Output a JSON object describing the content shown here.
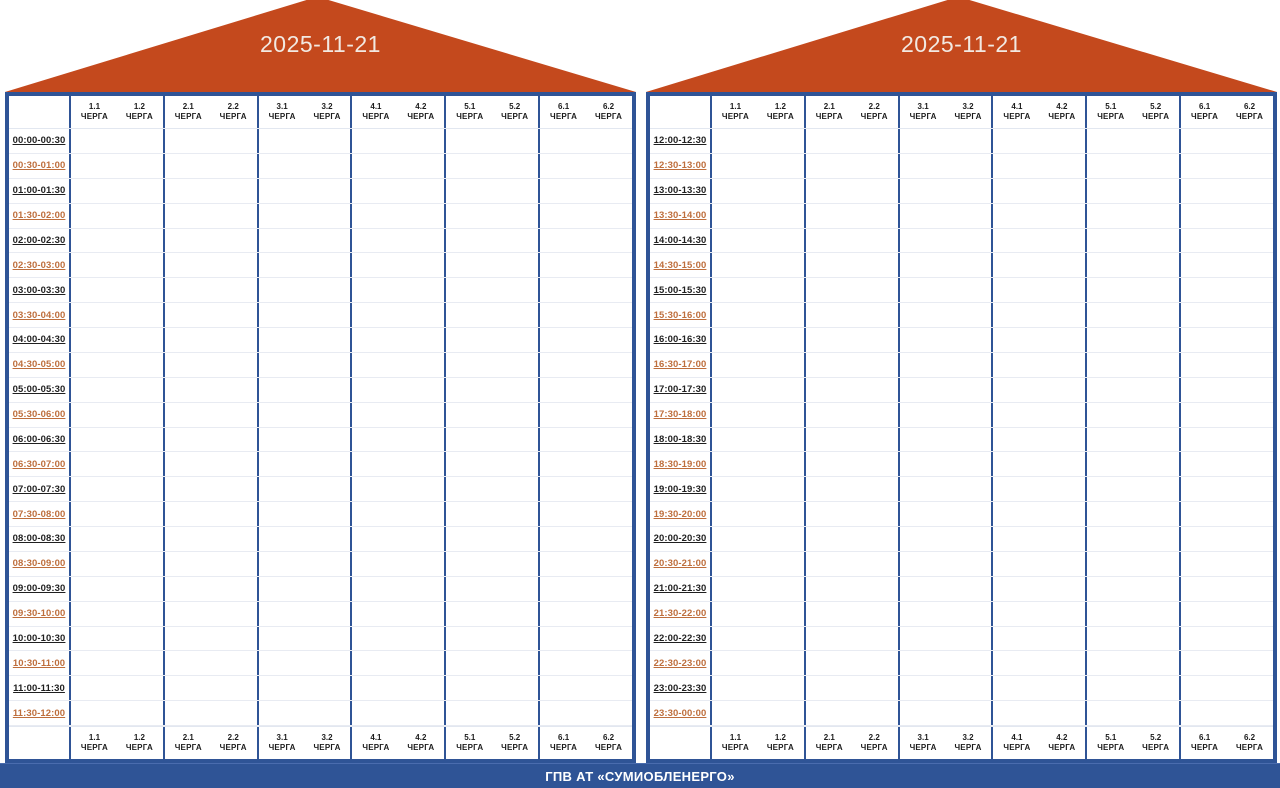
{
  "footer": {
    "label": "ГПВ АТ «СУМИОБЛЕНЕРГО»"
  },
  "colors": {
    "cell_on": "#FACD55",
    "cell_off": "#595959",
    "frame_blue": "#2F5496",
    "roof_orange": "#C4491D",
    "time_label_dark": "#1F1F1F",
    "time_label_orange": "#BE6E3C",
    "date_text": "#F2E9E2",
    "footer_text": "#FFFFFF"
  },
  "cell_states_legend": {
    "G": "dark cell #595959",
    "Y": "yellow cell #FACD55"
  },
  "chart_data": {
    "type": "heatmap",
    "title": "ГПВ АТ «СУМИОБЛЕНЕРГО»",
    "columns": [
      "1.1 ЧЕРГА",
      "1.2 ЧЕРГА",
      "2.1 ЧЕРГА",
      "2.2 ЧЕРГА",
      "3.1 ЧЕРГА",
      "3.2 ЧЕРГА",
      "4.1 ЧЕРГА",
      "4.2 ЧЕРГА",
      "5.1 ЧЕРГА",
      "5.2 ЧЕРГА",
      "6.1 ЧЕРГА",
      "6.2 ЧЕРГА"
    ],
    "legend": {
      "G": "#595959",
      "Y": "#FACD55"
    },
    "panels": [
      {
        "date": "2025-11-21",
        "rows": [
          {
            "time": "00:00-00:30",
            "states": "GGGGYYGYYYYY"
          },
          {
            "time": "00:30-01:00",
            "states": "GGGGYYGYYYYY"
          },
          {
            "time": "01:00-01:30",
            "states": "GGGGYYGYYYYY"
          },
          {
            "time": "01:30-02:00",
            "states": "GGGGYYGYYYYY"
          },
          {
            "time": "02:00-02:30",
            "states": "GGGGYYGYYYYY"
          },
          {
            "time": "02:30-03:00",
            "states": "YYYYYYGYYYYY"
          },
          {
            "time": "03:00-03:30",
            "states": "YYYYYYGYYYYY"
          },
          {
            "time": "03:30-04:00",
            "states": "YYYYGGGGYYGY"
          },
          {
            "time": "04:00-04:30",
            "states": "YYYYGGGGYYGY"
          },
          {
            "time": "04:30-05:00",
            "states": "YYYYGGGGYYGY"
          },
          {
            "time": "05:00-05:30",
            "states": "YYYYGGGGYYGY"
          },
          {
            "time": "05:30-06:00",
            "states": "YYYYGGGGYYGY"
          },
          {
            "time": "06:00-06:30",
            "states": "YYYYGGYYYYYY"
          },
          {
            "time": "06:30-07:00",
            "states": "YYYYGGYYYYYY"
          },
          {
            "time": "07:00-07:30",
            "states": "GGGGGGYYYYYG"
          },
          {
            "time": "07:30-08:00",
            "states": "GGGGGGYYYYYG"
          },
          {
            "time": "08:00-08:30",
            "states": "GGGGYYYYGGGG"
          },
          {
            "time": "08:30-09:00",
            "states": "GGGGYYYYGGGG"
          },
          {
            "time": "09:00-09:30",
            "states": "GGGGYYYYGGGG"
          },
          {
            "time": "09:30-10:00",
            "states": "GGGGYYYYYYYY"
          },
          {
            "time": "10:00-10:30",
            "states": "GGGGYYYYYYYY"
          },
          {
            "time": "10:30-11:00",
            "states": "GYYYYYGGGGGG"
          },
          {
            "time": "11:00-11:30",
            "states": "GYYYYYGGGGGG"
          },
          {
            "time": "11:30-12:00",
            "states": "GYYYYYGGGGGG"
          }
        ]
      },
      {
        "date": "2025-11-21",
        "rows": [
          {
            "time": "12:00-12:30",
            "states": "GYYYYYGGGGGG"
          },
          {
            "time": "12:30-13:00",
            "states": "GYYYYYGGGGGG"
          },
          {
            "time": "13:00-13:30",
            "states": "YYYYYYGGYYYY"
          },
          {
            "time": "13:30-14:00",
            "states": "YYYYYYGGYYYY"
          },
          {
            "time": "14:00-14:30",
            "states": "YGGGGGGGYYYY"
          },
          {
            "time": "14:30-15:00",
            "states": "YGGGGGGGYYYY"
          },
          {
            "time": "15:00-15:30",
            "states": "YGGGGGGGYYYY"
          },
          {
            "time": "15:30-16:00",
            "states": "YGGGGGGGYYYY"
          },
          {
            "time": "16:00-16:30",
            "states": "YGGGGGGGYYYY"
          },
          {
            "time": "16:30-17:00",
            "states": "YGGYYYYYYYYY"
          },
          {
            "time": "17:00-17:30",
            "states": "YGGYYYYYYYYY"
          },
          {
            "time": "17:30-18:00",
            "states": "GGGYYYYYGGGG"
          },
          {
            "time": "18:00-18:30",
            "states": "GGGYYYYYGGGG"
          },
          {
            "time": "18:30-19:00",
            "states": "GGGYYYYYGGGG"
          },
          {
            "time": "19:00-19:30",
            "states": "GGGYYYYYGGGG"
          },
          {
            "time": "19:30-20:00",
            "states": "GGGYYYYYGGGG"
          },
          {
            "time": "20:00-20:30",
            "states": "GGYYYYYYYYYY"
          },
          {
            "time": "20:30-21:00",
            "states": "GGYYYYYYYYYY"
          },
          {
            "time": "21:00-21:30",
            "states": "GGGGYYGGYYYY"
          },
          {
            "time": "21:30-22:00",
            "states": "GGGGYYGGYYYY"
          },
          {
            "time": "22:00-22:30",
            "states": "GGGGYYGGYYYY"
          },
          {
            "time": "22:30-23:00",
            "states": "GGGGYYGGYYYY"
          },
          {
            "time": "23:00-23:30",
            "states": "GGGGYYGGYYYY"
          },
          {
            "time": "23:30-00:00",
            "states": "YYYYYYGGYYYY"
          }
        ]
      }
    ]
  }
}
